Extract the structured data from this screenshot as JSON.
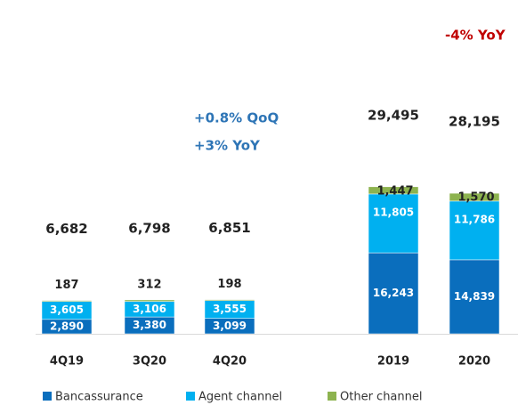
{
  "chart_data": {
    "type": "stacked_bar",
    "categories": [
      "4Q19",
      "3Q20",
      "4Q20",
      "2019",
      "2020"
    ],
    "series": [
      {
        "name": "Bancassurance",
        "color": "#0a6ebd",
        "values": [
          2890,
          3380,
          3099,
          16243,
          14839
        ],
        "value_labels": [
          "2,890",
          "3,380",
          "3,099",
          "16,243",
          "14,839"
        ]
      },
      {
        "name": "Agent channel",
        "color": "#00b0f0",
        "values": [
          3605,
          3106,
          3555,
          11805,
          11786
        ],
        "value_labels": [
          "3,605",
          "3,106",
          "3,555",
          "11,805",
          "11,786"
        ]
      },
      {
        "name": "Other channel",
        "color": "#8db34f",
        "values": [
          187,
          312,
          198,
          1447,
          1570
        ],
        "value_labels": [
          "187",
          "312",
          "198",
          "1,447",
          "1,570"
        ]
      }
    ],
    "totals": [
      6682,
      6798,
      6851,
      29495,
      28195
    ],
    "total_labels": [
      "6,682",
      "6,798",
      "6,851",
      "29,495",
      "28,195"
    ],
    "annotations": [
      "+0.8% QoQ",
      "+3% YoY",
      "-4% YoY"
    ],
    "ylim": [
      0,
      30000
    ]
  }
}
